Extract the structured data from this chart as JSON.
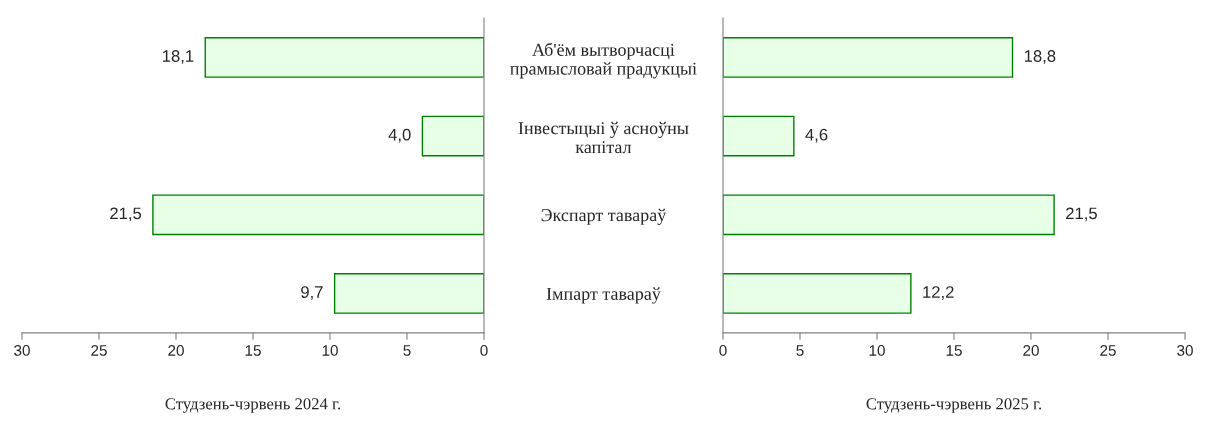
{
  "chart_data": [
    {
      "type": "bar",
      "orientation": "horizontal",
      "xlabel": "Студзень-чэрвень 2024 г.",
      "categories": [
        "Аб'ём вытворчасці\nпрамысловай прадукцыі",
        "Інвестыцыі ў асноўны\nкапітал",
        "Экспарт тавараў",
        "Імпарт тавараў"
      ],
      "series": [
        {
          "color": "#e6ffe6",
          "values": [
            18.1,
            4.0,
            21.5,
            9.7
          ],
          "value_labels": [
            "18,1",
            "4,0",
            "21,5",
            "9,7"
          ]
        }
      ],
      "xlim": [
        30,
        0
      ],
      "xticks": [
        30,
        25,
        20,
        15,
        10,
        5,
        0
      ]
    },
    {
      "type": "bar",
      "orientation": "horizontal",
      "xlabel": "Студзень-чэрвень 2025 г.",
      "categories": [
        null,
        null,
        null,
        null
      ],
      "series": [
        {
          "color": "#e6ffe6",
          "values": [
            18.8,
            4.6,
            21.5,
            12.2
          ],
          "value_labels": [
            "18,8",
            "4,6",
            "21,5",
            "12,2"
          ]
        }
      ],
      "xlim": [
        0,
        30
      ],
      "xticks": [
        0,
        5,
        10,
        15,
        20,
        25,
        30
      ],
      "tick_labels": "x"
    }
  ]
}
